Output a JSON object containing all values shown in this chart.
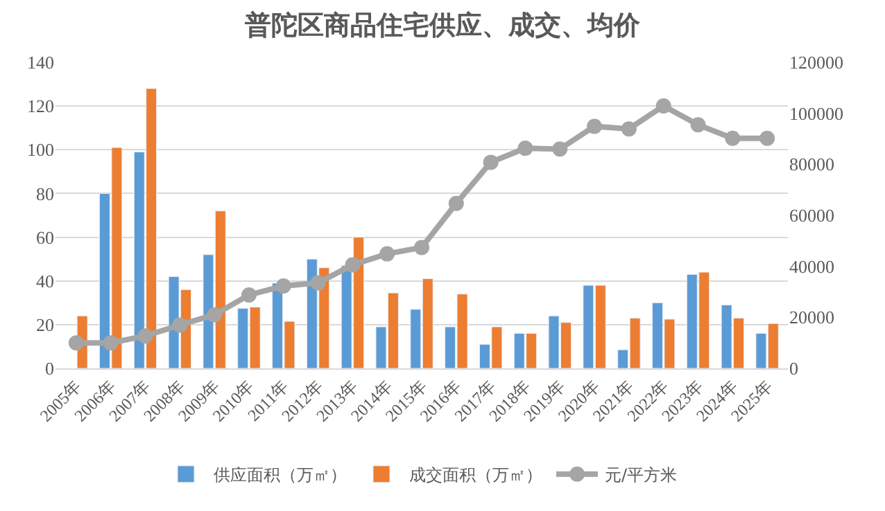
{
  "chart_data": {
    "type": "bar",
    "title": "普陀区商品住宅供应、成交、均价",
    "categories": [
      "2005年",
      "2006年",
      "2007年",
      "2008年",
      "2009年",
      "2010年",
      "2011年",
      "2012年",
      "2013年",
      "2014年",
      "2015年",
      "2016年",
      "2017年",
      "2018年",
      "2019年",
      "2020年",
      "2021年",
      "2022年",
      "2023年",
      "2024年",
      "2025年"
    ],
    "series": [
      {
        "name": "供应面积（万㎡）",
        "color": "#5b9bd5",
        "values": [
          null,
          80,
          99,
          42,
          52,
          27.5,
          39,
          50,
          47,
          19,
          27,
          19,
          11,
          16,
          24,
          38,
          8.5,
          30,
          43,
          29,
          16
        ]
      },
      {
        "name": "成交面积（万㎡）",
        "color": "#ed7d31",
        "values": [
          24,
          101,
          128,
          36,
          72,
          28,
          21.5,
          46,
          60,
          34.5,
          41,
          34,
          19,
          16,
          21,
          38,
          23,
          22.5,
          44,
          23,
          20.5
        ]
      },
      {
        "name": "元/平方米",
        "type": "line",
        "axis": "y2",
        "color": "#a5a5a5",
        "marker": "circle",
        "values": [
          10000,
          10000,
          12700,
          17000,
          21000,
          28800,
          32300,
          33500,
          40600,
          44900,
          47400,
          64700,
          80800,
          86300,
          86000,
          94900,
          93900,
          102900,
          95500,
          90200,
          90200
        ]
      }
    ],
    "ylim": [
      0,
      140
    ],
    "yticks": [
      0,
      20,
      40,
      60,
      80,
      100,
      120,
      140
    ],
    "y2lim": [
      0,
      120000
    ],
    "y2ticks": [
      0,
      20000,
      40000,
      60000,
      80000,
      100000,
      120000
    ],
    "grid": "y",
    "legend": "bottom"
  }
}
